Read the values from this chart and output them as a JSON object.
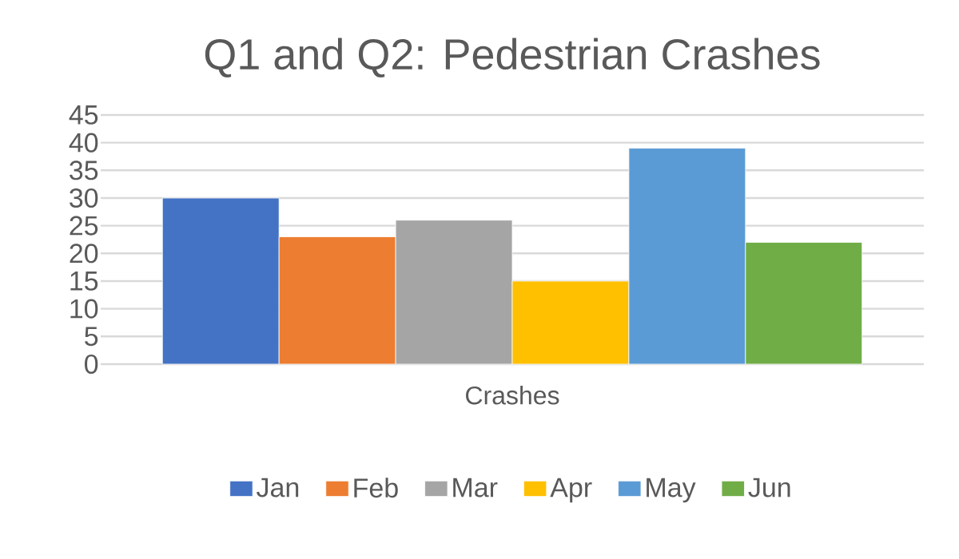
{
  "chart_data": {
    "type": "bar",
    "title": "Q1 and Q2: Pedestrian Crashes",
    "categories": [
      "Crashes"
    ],
    "series": [
      {
        "name": "Jan",
        "color": "#4472c4",
        "values": [
          30
        ]
      },
      {
        "name": "Feb",
        "color": "#ed7d31",
        "values": [
          23
        ]
      },
      {
        "name": "Mar",
        "color": "#a5a5a5",
        "values": [
          26
        ]
      },
      {
        "name": "Apr",
        "color": "#ffc000",
        "values": [
          15
        ]
      },
      {
        "name": "May",
        "color": "#5b9bd5",
        "values": [
          39
        ]
      },
      {
        "name": "Jun",
        "color": "#70ad47",
        "values": [
          22
        ]
      }
    ],
    "ylim": [
      0,
      45
    ],
    "yticks": [
      0,
      5,
      10,
      15,
      20,
      25,
      30,
      35,
      40,
      45
    ],
    "grid": "y",
    "legend": "bottom"
  }
}
